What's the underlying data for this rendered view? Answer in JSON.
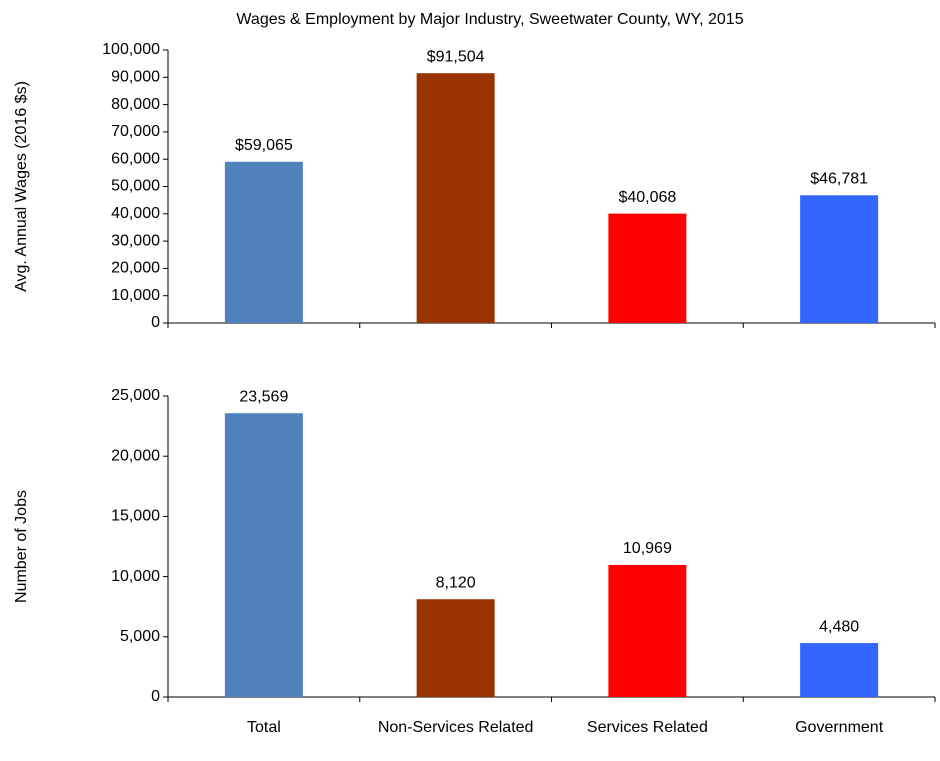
{
  "chart_data": [
    {
      "type": "bar",
      "title": "Wages & Employment by Major Industry, Sweetwater County, WY, 2015",
      "y_label": "Avg. Annual Wages (2016 $s)",
      "categories": [
        null,
        null,
        null,
        null
      ],
      "values": [
        59065,
        91504,
        40068,
        46781
      ],
      "value_labels": [
        "$59,065",
        "$91,504",
        "$40,068",
        "$46,781"
      ],
      "colors": [
        "#4f81bd",
        "#993300",
        "#ff0000",
        "#3366ff"
      ],
      "ylim": [
        0,
        100000
      ],
      "yticks": [
        0,
        {
          "value": 10000,
          "label": "10,000"
        },
        {
          "value": 20000,
          "label": "20,000"
        },
        {
          "value": 30000,
          "label": "30,000"
        },
        {
          "value": 40000,
          "label": "40,000"
        },
        {
          "value": 50000,
          "label": "50,000"
        },
        {
          "value": 60000,
          "label": "60,000"
        },
        {
          "value": 70000,
          "label": "70,000"
        },
        {
          "value": 80000,
          "label": "80,000"
        },
        {
          "value": 90000,
          "label": "90,000"
        },
        {
          "value": 100000,
          "label": "100,000"
        }
      ]
    },
    {
      "type": "bar",
      "y_label": "Number of Jobs",
      "categories": [
        "Total",
        "Non-Services Related",
        "Services Related",
        "Government"
      ],
      "values": [
        23569,
        8120,
        10969,
        4480
      ],
      "value_labels": [
        "23,569",
        "8,120",
        "10,969",
        "4,480"
      ],
      "colors": [
        "#4f81bd",
        "#993300",
        "#ff0000",
        "#3366ff"
      ],
      "ylim": [
        0,
        25000
      ],
      "yticks": [
        0,
        {
          "value": 5000,
          "label": "5,000"
        },
        {
          "value": 10000,
          "label": "10,000"
        },
        {
          "value": 15000,
          "label": "15,000"
        },
        {
          "value": 20000,
          "label": "20,000"
        },
        {
          "value": 25000,
          "label": "25,000"
        }
      ]
    }
  ]
}
